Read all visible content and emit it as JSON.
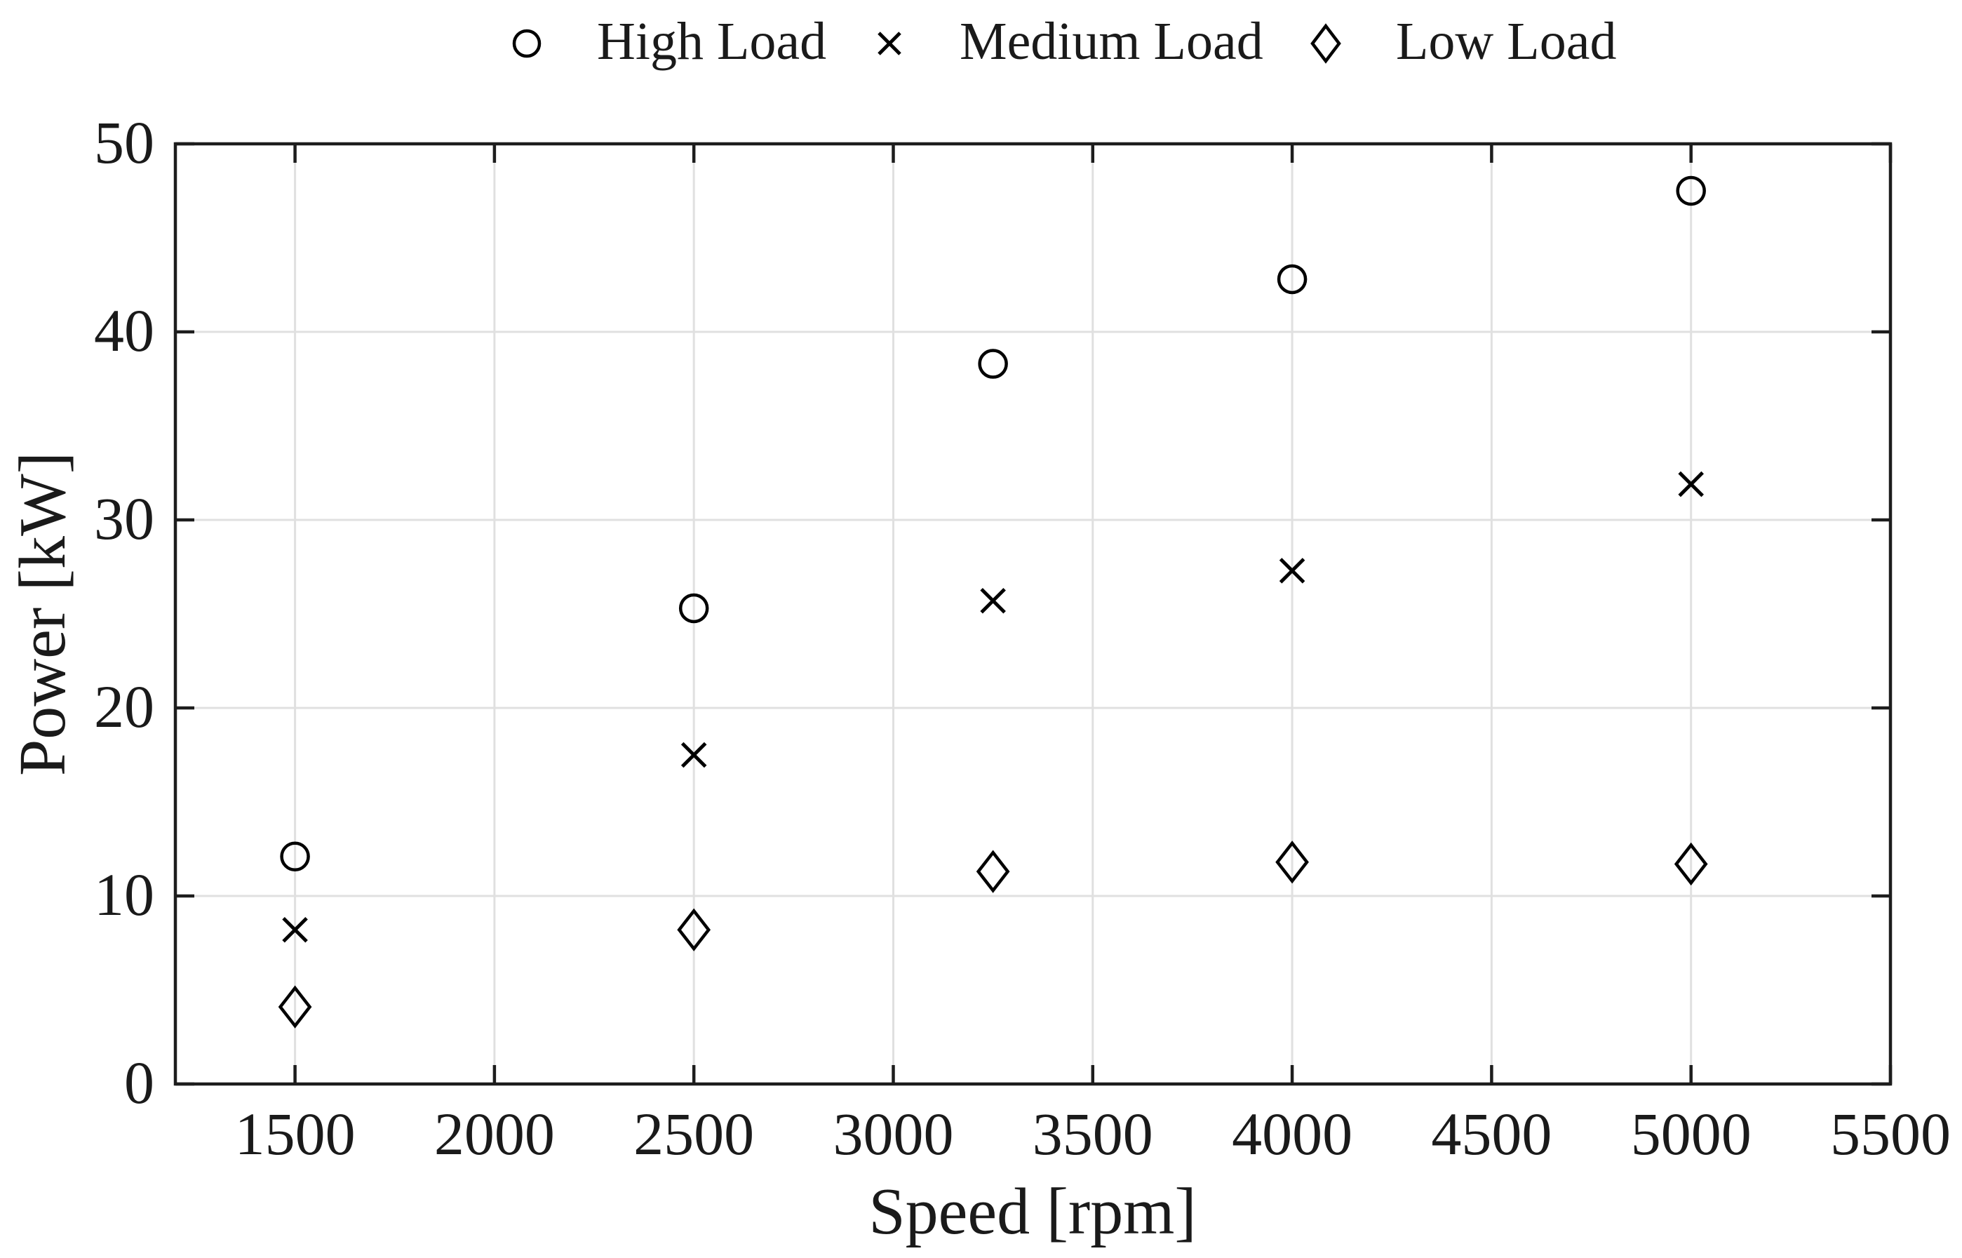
{
  "chart_data": {
    "type": "scatter",
    "title": "",
    "xlabel": "Speed [rpm]",
    "ylabel": "Power [kW]",
    "xlim": [
      1200,
      5500
    ],
    "ylim": [
      0,
      50
    ],
    "xticks": [
      1500,
      2000,
      2500,
      3000,
      3500,
      4000,
      4500,
      5000,
      5500
    ],
    "yticks": [
      0,
      10,
      20,
      30,
      40,
      50
    ],
    "grid": true,
    "legend_position": "top-center",
    "legend_box": false,
    "x": [
      1500,
      2500,
      3250,
      4000,
      5000
    ],
    "series": [
      {
        "name": "High Load",
        "marker": "circle",
        "values": [
          12.1,
          25.3,
          38.3,
          42.8,
          47.5
        ]
      },
      {
        "name": "Medium Load",
        "marker": "x",
        "values": [
          8.2,
          17.5,
          25.7,
          27.3,
          31.9
        ]
      },
      {
        "name": "Low Load",
        "marker": "diamond",
        "values": [
          4.1,
          8.2,
          11.3,
          11.8,
          11.7
        ]
      }
    ],
    "colors": {
      "marker": "#000000",
      "axis": "#1d1d1d",
      "grid": "#e0e0e0",
      "text": "#1a1a1a",
      "background": "#ffffff"
    }
  }
}
